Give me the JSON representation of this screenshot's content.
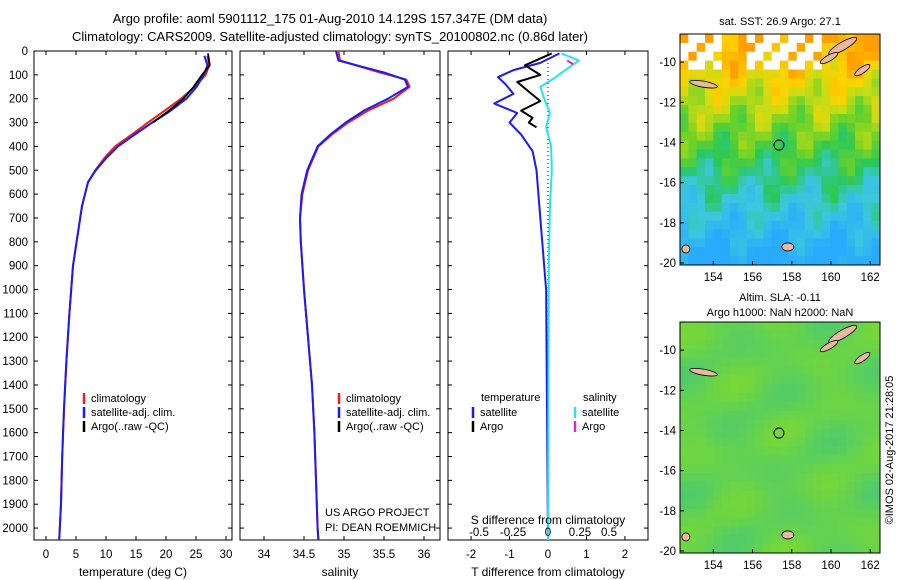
{
  "title_line1": "Argo profile: aoml 5901112_175 01-Aug-2010 14.129S 157.347E (DM data)",
  "title_line2": "Climatology: CARS2009. Satellite-adjusted climatology: synTS_20100802.nc (0.86d later)",
  "colors": {
    "climatology": "#e8201c",
    "satellite": "#1c1cf0",
    "argo": "#000000",
    "salinity_satellite": "#22e6f0",
    "salinity_argo": "#e020e0"
  },
  "chart_data": [
    {
      "type": "line",
      "name": "temperature-profile",
      "xlabel": "temperature (deg C)",
      "xlim": [
        -2,
        31
      ],
      "xticks": [
        0,
        5,
        10,
        15,
        20,
        25,
        30
      ],
      "ylim": [
        0,
        2050
      ],
      "yticks": [
        0,
        100,
        200,
        300,
        400,
        500,
        600,
        700,
        800,
        900,
        1000,
        1100,
        1200,
        1300,
        1400,
        1500,
        1600,
        1700,
        1800,
        1900,
        2000
      ],
      "y_inverted": true,
      "legend": [
        "climatology",
        "satellite-adj. clim.",
        "Argo(..raw -QC)"
      ],
      "series": [
        {
          "name": "climatology",
          "color": "#e8201c",
          "x": [
            26.9,
            27.2,
            26.6,
            24.8,
            22.5,
            19.8,
            17.0,
            14.3,
            11.5,
            9.7,
            8.2,
            7.0,
            6.0,
            5.4,
            4.5,
            3.9,
            3.4,
            3.0,
            2.7,
            2.5,
            2.3,
            2.2
          ],
          "y": [
            20,
            60,
            100,
            150,
            200,
            250,
            300,
            350,
            400,
            450,
            500,
            550,
            650,
            750,
            900,
            1100,
            1300,
            1500,
            1700,
            1900,
            2000,
            2050
          ]
        },
        {
          "name": "satellite-adj. clim.",
          "color": "#1c1cf0",
          "x": [
            26.4,
            26.9,
            26.3,
            25.1,
            23.4,
            20.8,
            17.7,
            14.8,
            12.0,
            10.0,
            8.3,
            7.0,
            6.0,
            5.4,
            4.5,
            3.9,
            3.4,
            3.0,
            2.7,
            2.5,
            2.3,
            2.2
          ],
          "y": [
            20,
            60,
            100,
            150,
            200,
            250,
            300,
            350,
            400,
            450,
            500,
            550,
            650,
            750,
            900,
            1100,
            1300,
            1500,
            1700,
            1900,
            2000,
            2050
          ]
        },
        {
          "name": "Argo(..raw -QC)",
          "color": "#000000",
          "x": [
            27.0,
            27.3,
            26.0,
            24.6,
            22.9,
            20.5,
            17.8
          ],
          "y": [
            10,
            60,
            100,
            150,
            200,
            250,
            300
          ]
        }
      ]
    },
    {
      "type": "line",
      "name": "salinity-profile",
      "xlabel": "salinity",
      "xlim": [
        33.7,
        36.2
      ],
      "xticks": [
        34,
        34.5,
        35,
        35.5,
        36
      ],
      "ylim": [
        0,
        2050
      ],
      "y_inverted": true,
      "legend": [
        "climatology",
        "satellite-adj. clim.",
        "Argo(..raw -QC)"
      ],
      "annotation": [
        "US ARGO PROJECT",
        "PI: DEAN ROEMMICH"
      ],
      "series": [
        {
          "name": "climatology",
          "color": "#e8201c",
          "x": [
            34.93,
            34.95,
            35.45,
            35.78,
            35.82,
            35.62,
            35.3,
            35.05,
            34.85,
            34.68,
            34.55,
            34.48,
            34.45,
            34.46,
            34.5,
            34.55,
            34.6,
            34.63,
            34.65,
            34.67,
            34.68
          ],
          "y": [
            0,
            40,
            90,
            120,
            150,
            200,
            250,
            300,
            350,
            400,
            500,
            600,
            700,
            800,
            1000,
            1200,
            1400,
            1600,
            1800,
            2000,
            2050
          ]
        },
        {
          "name": "satellite-adj. clim.",
          "color": "#1c1cf0",
          "x": [
            34.9,
            34.93,
            35.5,
            35.76,
            35.8,
            35.55,
            35.25,
            35.02,
            34.83,
            34.67,
            34.54,
            34.47,
            34.45,
            34.46,
            34.5,
            34.55,
            34.6,
            34.63,
            34.65,
            34.67,
            34.68
          ],
          "y": [
            0,
            40,
            90,
            120,
            150,
            200,
            250,
            300,
            350,
            400,
            500,
            600,
            700,
            800,
            1000,
            1200,
            1400,
            1600,
            1800,
            2000,
            2050
          ]
        }
      ]
    },
    {
      "type": "line",
      "name": "difference-profile",
      "xlabel": "T difference from climatology",
      "xlabel_top": "S difference from climatology",
      "xlim": [
        -2.6,
        2.6
      ],
      "xticks": [
        -2,
        -1,
        0,
        1,
        2
      ],
      "s_xticks": [
        -0.5,
        -0.25,
        0,
        0.25,
        0.5
      ],
      "s_ticklabels": [
        "-0.5",
        "-0.25",
        "0",
        "0.25",
        "0.5"
      ],
      "ylim": [
        0,
        2050
      ],
      "y_inverted": true,
      "legend_temperature": {
        "heading": "temperature",
        "items": [
          "satellite",
          "Argo"
        ]
      },
      "legend_salinity": {
        "heading": "salinity",
        "items": [
          "satellite",
          "Argo"
        ]
      },
      "series": [
        {
          "name": "temperature satellite",
          "color": "#1c1cf0",
          "x": [
            0.3,
            -0.2,
            -0.9,
            -1.3,
            -1.1,
            -0.9,
            -1.4,
            -0.8,
            -1.0,
            -0.7,
            -0.4,
            -0.3,
            -0.2,
            -0.05,
            0
          ],
          "y": [
            10,
            50,
            80,
            110,
            140,
            180,
            220,
            260,
            300,
            350,
            420,
            500,
            700,
            1000,
            2050
          ]
        },
        {
          "name": "temperature Argo",
          "color": "#000000",
          "x": [
            0.1,
            -0.6,
            -0.2,
            -0.8,
            -0.5,
            -0.2,
            -0.7,
            -0.4,
            -0.5,
            -0.3
          ],
          "y": [
            10,
            60,
            100,
            130,
            170,
            210,
            250,
            280,
            300,
            320
          ]
        },
        {
          "name": "salinity satellite",
          "color": "#22e6f0",
          "x": [
            0.35,
            0.8,
            0.45,
            0.2,
            -0.2,
            -0.1,
            0.05,
            -0.05,
            0.08,
            0.1,
            0.05,
            0.02,
            0
          ],
          "y": [
            10,
            40,
            80,
            110,
            150,
            200,
            260,
            320,
            400,
            500,
            650,
            900,
            2050
          ]
        },
        {
          "name": "salinity Argo",
          "color": "#e020e0",
          "x": [
            0.5,
            0.65
          ],
          "y": [
            40,
            55
          ]
        }
      ]
    },
    {
      "type": "heatmap",
      "name": "sst-map",
      "title": "sat. SST: 26.9 Argo: 27.1",
      "xlim": [
        152.3,
        162.5
      ],
      "ylim": [
        -20.1,
        -8.6
      ],
      "xticks": [
        154,
        156,
        158,
        160,
        162
      ],
      "yticks": [
        -10,
        -12,
        -14,
        -16,
        -18,
        -20
      ],
      "argo_position": {
        "lon": 157.347,
        "lat": -14.129
      }
    },
    {
      "type": "heatmap",
      "name": "sla-map",
      "title_line1": "Altim. SLA: -0.11",
      "title_line2": "Argo h1000: NaN h2000: NaN",
      "xlim": [
        152.3,
        162.5
      ],
      "ylim": [
        -20.1,
        -8.6
      ],
      "xticks": [
        154,
        156,
        158,
        160,
        162
      ],
      "yticks": [
        -10,
        -12,
        -14,
        -16,
        -18,
        -20
      ],
      "argo_position": {
        "lon": 157.347,
        "lat": -14.129
      }
    }
  ],
  "credit": "©IMOS 02-Aug-2017 21:28:05"
}
